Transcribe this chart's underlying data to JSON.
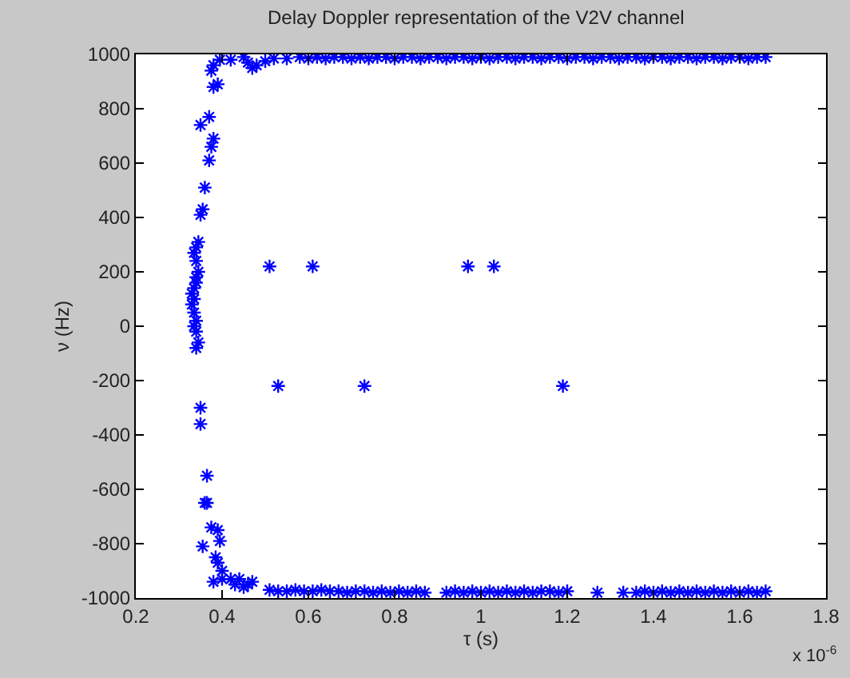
{
  "chart_data": {
    "type": "scatter",
    "title": "Delay Doppler representation of the V2V channel",
    "xlabel": "τ (s)",
    "ylabel": "ν (Hz)",
    "annotations": [
      "x 10$^{-6}$"
    ],
    "xlim": [
      0.2,
      1.8
    ],
    "xticks": [
      0.2,
      0.4,
      0.6,
      0.8,
      1,
      1.2,
      1.4,
      1.6,
      1.8
    ],
    "ylim": [
      -1000,
      1000
    ],
    "yticks": [
      -1000,
      -800,
      -600,
      -400,
      -200,
      0,
      200,
      400,
      600,
      800,
      1000
    ],
    "grid": false,
    "marker": "cross",
    "series": [
      {
        "color": "#0000ff",
        "x": [
          0.34,
          0.345,
          0.34,
          0.335,
          0.34,
          0.335,
          0.33,
          0.335,
          0.33,
          0.335,
          0.34,
          0.34,
          0.345,
          0.34,
          0.335,
          0.34,
          0.345,
          0.35,
          0.355,
          0.36,
          0.37,
          0.375,
          0.38,
          0.35,
          0.37,
          0.38,
          0.39,
          0.375,
          0.38,
          0.395,
          0.42,
          0.45,
          0.46,
          0.47,
          0.48,
          0.5,
          0.52,
          0.55,
          0.58,
          0.6,
          0.62,
          0.64,
          0.66,
          0.68,
          0.7,
          0.72,
          0.74,
          0.76,
          0.78,
          0.8,
          0.82,
          0.84,
          0.86,
          0.88,
          0.9,
          0.92,
          0.94,
          0.96,
          0.98,
          1.0,
          1.02,
          1.04,
          1.06,
          1.08,
          1.1,
          1.12,
          1.14,
          1.16,
          1.18,
          1.2,
          1.22,
          1.24,
          1.26,
          1.28,
          1.3,
          1.32,
          1.34,
          1.36,
          1.38,
          1.4,
          1.42,
          1.44,
          1.46,
          1.48,
          1.5,
          1.52,
          1.54,
          1.56,
          1.58,
          1.6,
          1.62,
          1.64,
          1.66,
          0.35,
          0.35,
          0.365,
          0.36,
          0.365,
          0.355,
          0.375,
          0.39,
          0.395,
          0.385,
          0.39,
          0.4,
          0.38,
          0.4,
          0.42,
          0.43,
          0.44,
          0.45,
          0.46,
          0.47,
          0.51,
          0.53,
          0.55,
          0.57,
          0.59,
          0.61,
          0.63,
          0.65,
          0.67,
          0.69,
          0.71,
          0.73,
          0.75,
          0.77,
          0.79,
          0.81,
          0.83,
          0.85,
          0.87,
          0.92,
          0.94,
          0.96,
          0.98,
          1.0,
          1.02,
          1.04,
          1.06,
          1.08,
          1.1,
          1.12,
          1.14,
          1.16,
          1.18,
          1.2,
          1.27,
          1.33,
          1.36,
          1.38,
          1.4,
          1.42,
          1.44,
          1.46,
          1.48,
          1.5,
          1.52,
          1.54,
          1.56,
          1.58,
          1.6,
          1.62,
          1.64,
          1.66,
          0.51,
          0.61,
          0.97,
          1.03,
          0.53,
          0.73,
          1.19
        ],
        "values": [
          -80,
          -60,
          -20,
          0,
          20,
          50,
          80,
          100,
          120,
          140,
          160,
          180,
          200,
          240,
          270,
          290,
          310,
          410,
          430,
          510,
          610,
          660,
          690,
          740,
          770,
          880,
          890,
          940,
          960,
          980,
          980,
          990,
          970,
          950,
          960,
          975,
          985,
          985,
          990,
          985,
          990,
          985,
          990,
          990,
          985,
          990,
          985,
          990,
          990,
          985,
          990,
          990,
          985,
          990,
          990,
          985,
          990,
          990,
          985,
          990,
          985,
          990,
          990,
          985,
          990,
          990,
          985,
          990,
          990,
          985,
          990,
          990,
          985,
          990,
          990,
          985,
          990,
          990,
          985,
          990,
          990,
          985,
          990,
          990,
          985,
          990,
          990,
          985,
          990,
          990,
          985,
          990,
          990,
          -300,
          -360,
          -550,
          -650,
          -650,
          -810,
          -740,
          -750,
          -790,
          -850,
          -870,
          -900,
          -940,
          -930,
          -930,
          -950,
          -930,
          -960,
          -950,
          -940,
          -970,
          -975,
          -975,
          -970,
          -975,
          -975,
          -970,
          -975,
          -975,
          -980,
          -975,
          -975,
          -980,
          -975,
          -980,
          -975,
          -980,
          -975,
          -980,
          -980,
          -975,
          -980,
          -975,
          -980,
          -975,
          -980,
          -975,
          -980,
          -975,
          -980,
          -975,
          -975,
          -980,
          -975,
          -980,
          -980,
          -980,
          -975,
          -980,
          -975,
          -980,
          -975,
          -980,
          -975,
          -980,
          -975,
          -980,
          -975,
          -980,
          -975,
          -980,
          -975,
          220,
          220,
          220,
          220,
          -220,
          -220,
          -220
        ]
      }
    ]
  }
}
